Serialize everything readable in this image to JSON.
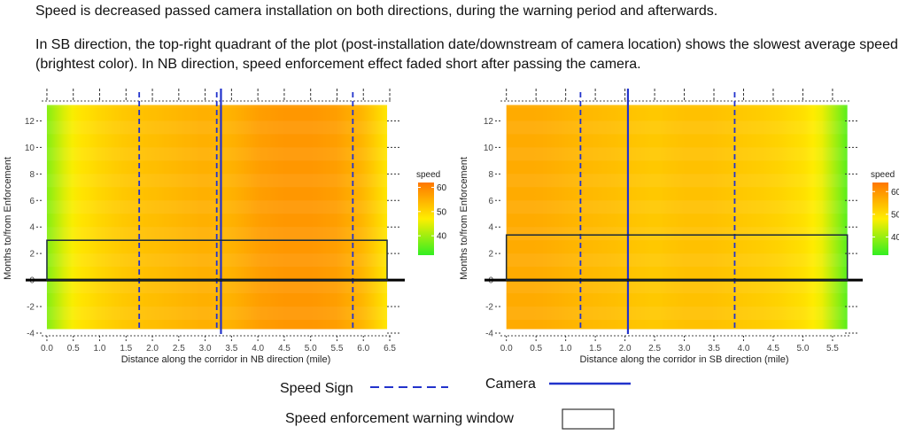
{
  "notes": {
    "line1": "Speed is decreased passed camera installation on both directions, during the warning period and afterwards.",
    "line2": "In SB direction, the top-right quadrant of the plot (post-installation date/downstream of camera location) shows the slowest average speed (brightest color). In NB direction, speed enforcement effect faded short after passing the camera."
  },
  "chart_data": [
    {
      "type": "heatmap",
      "direction": "NB",
      "xlabel": "Distance along the corridor in NB direction (mile)",
      "ylabel": "Months to/from Enforcement",
      "xlim": [
        -0.1,
        6.55
      ],
      "ylim": [
        -4.2,
        13.5
      ],
      "xticks": [
        0.0,
        0.5,
        1.0,
        1.5,
        2.0,
        2.5,
        3.0,
        3.5,
        4.0,
        4.5,
        5.0,
        5.5,
        6.0,
        6.5
      ],
      "xtick_labels": [
        "0.0",
        "0.5",
        "1.0",
        "1.5",
        "2.0",
        "2.5",
        "3.0",
        "3.5",
        "4.0",
        "4.5",
        "5.0",
        "5.5",
        "6.0",
        "6.5"
      ],
      "yticks": [
        -4,
        -2,
        0,
        2,
        4,
        6,
        8,
        10,
        12
      ],
      "ytick_labels": [
        "-4",
        "-2",
        "0",
        "2",
        "4",
        "6",
        "8",
        "10",
        "12"
      ],
      "data_extent_x": [
        0.0,
        6.45
      ],
      "data_extent_y": [
        -3.7,
        13.2
      ],
      "speed_profile": {
        "x": [
          0.0,
          0.3,
          0.6,
          1.0,
          1.5,
          2.0,
          2.5,
          3.0,
          3.3,
          3.6,
          4.0,
          4.5,
          5.0,
          5.5,
          6.0,
          6.3,
          6.45
        ],
        "speed": [
          38,
          44,
          48,
          50,
          52,
          53,
          54,
          55,
          54,
          55,
          57,
          58,
          58,
          57,
          54,
          50,
          48
        ]
      },
      "colorbar": {
        "title": "speed",
        "range": [
          32,
          62
        ],
        "ticks": [
          40,
          50,
          60
        ],
        "colors": [
          "#33ee22",
          "#ffee00",
          "#ff7700"
        ]
      },
      "speed_signs_x": [
        1.75,
        3.22,
        5.8
      ],
      "camera_x": [
        3.3
      ],
      "warning_window": {
        "x": [
          0.0,
          6.45
        ],
        "y": [
          0,
          3
        ]
      },
      "enforcement_month": 0
    },
    {
      "type": "heatmap",
      "direction": "SB",
      "xlabel": "Distance along the corridor in SB direction (mile)",
      "ylabel": "Months to/from Enforcement",
      "xlim": [
        -0.1,
        5.8
      ],
      "ylim": [
        -4.2,
        13.5
      ],
      "xticks": [
        0.0,
        0.5,
        1.0,
        1.5,
        2.0,
        2.5,
        3.0,
        3.5,
        4.0,
        4.5,
        5.0,
        5.5
      ],
      "xtick_labels": [
        "0.0",
        "0.5",
        "1.0",
        "1.5",
        "2.0",
        "2.5",
        "3.0",
        "3.5",
        "4.0",
        "4.5",
        "5.0",
        "5.5"
      ],
      "yticks": [
        -4,
        -2,
        0,
        2,
        4,
        6,
        8,
        10,
        12
      ],
      "ytick_labels": [
        "-4",
        "-2",
        "0",
        "2",
        "4",
        "6",
        "8",
        "10",
        "12"
      ],
      "data_extent_x": [
        0.0,
        5.75
      ],
      "data_extent_y": [
        -3.7,
        13.2
      ],
      "speed_profile": {
        "x": [
          0.0,
          0.5,
          1.0,
          1.5,
          2.0,
          2.5,
          3.0,
          3.5,
          4.0,
          4.5,
          5.0,
          5.3,
          5.5,
          5.75
        ],
        "speed": [
          57,
          57,
          56,
          55,
          54,
          53,
          54,
          54,
          53,
          52,
          50,
          47,
          42,
          35
        ]
      },
      "colorbar": {
        "title": "speed",
        "range": [
          32,
          64
        ],
        "ticks": [
          40,
          50,
          60
        ],
        "colors": [
          "#33ee22",
          "#ffee00",
          "#ff7700"
        ]
      },
      "speed_signs_x": [
        1.25,
        3.85
      ],
      "camera_x": [
        2.05
      ],
      "warning_window": {
        "x": [
          0.0,
          5.75
        ],
        "y": [
          0,
          3.4
        ]
      },
      "enforcement_month": 0
    }
  ],
  "key": {
    "speed_sign": "Speed Sign",
    "camera": "Camera",
    "warning_window": "Speed enforcement warning window",
    "line_color": "#2233cc"
  }
}
